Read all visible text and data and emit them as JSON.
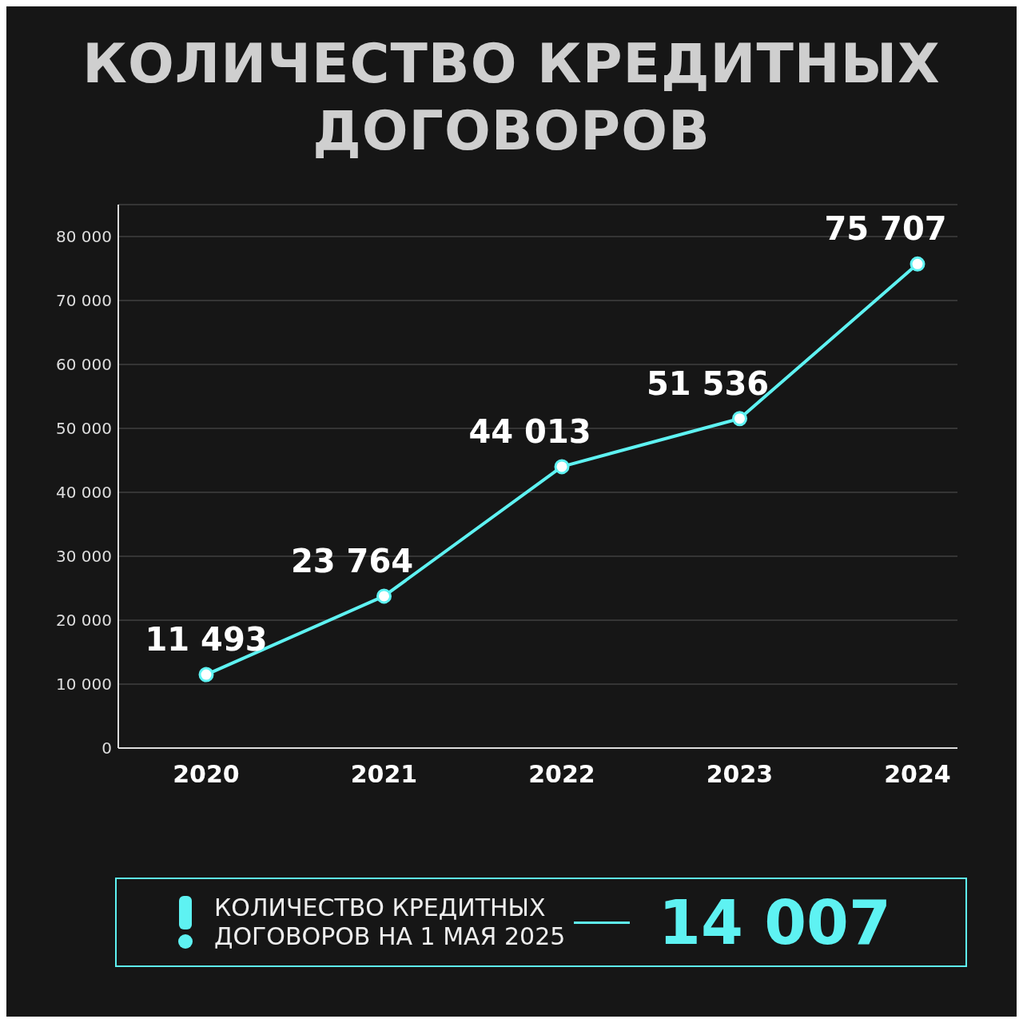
{
  "chart_data": {
    "type": "line",
    "title": "КОЛИЧЕСТВО КРЕДИТНЫХ ДОГОВОРОВ",
    "categories": [
      "2020",
      "2021",
      "2022",
      "2023",
      "2024"
    ],
    "values": [
      11493,
      23764,
      44013,
      51536,
      75707
    ],
    "value_labels": [
      "11 493",
      "23 764",
      "44 013",
      "51 536",
      "75 707"
    ],
    "color": "#5ef2f2",
    "ylim": [
      0,
      85000
    ],
    "yticks": [
      0,
      {
        "value": 10000,
        "label": "10 000"
      },
      {
        "value": 20000,
        "label": "20 000"
      },
      {
        "value": 30000,
        "label": "30 000"
      },
      {
        "value": 40000,
        "label": "40 000"
      },
      {
        "value": 50000,
        "label": "50 000"
      },
      {
        "value": 60000,
        "label": "60 000"
      },
      {
        "value": 70000,
        "label": "70 000"
      },
      {
        "value": 80000,
        "label": "80 000"
      }
    ],
    "grid": "y",
    "marker": "circle",
    "line_style": "solid",
    "annotations": [
      "КОЛИЧЕСТВО КРЕДИТНЫХ ДОГОВОРОВ НА 1 МАЯ 2025",
      "14 007"
    ]
  }
}
